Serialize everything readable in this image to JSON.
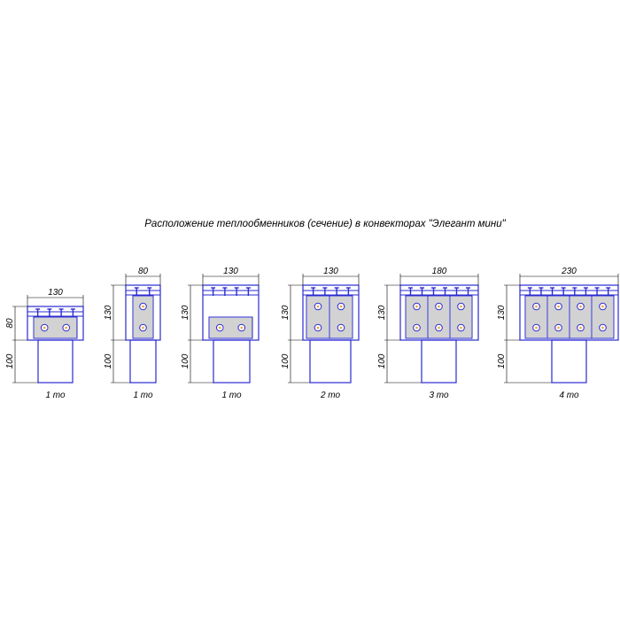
{
  "title": "Расположение теплообменников (сечение) в конвекторах \"Элегант мини\"",
  "colors": {
    "outline": "#2a2ad0",
    "dimension": "#000000",
    "exchanger_fill": "#e4e4e4",
    "pipe_center": "#f0a040"
  },
  "units": [
    {
      "width_label": "130",
      "height_label": "80",
      "base_label": "100",
      "caption": "1 то",
      "exchangers": 1,
      "orientation": "horizontal"
    },
    {
      "width_label": "80",
      "height_label": "130",
      "base_label": "100",
      "caption": "1 то",
      "exchangers": 1,
      "orientation": "vertical"
    },
    {
      "width_label": "130",
      "height_label": "130",
      "base_label": "100",
      "caption": "1 то",
      "exchangers": 1,
      "orientation": "horizontal"
    },
    {
      "width_label": "130",
      "height_label": "130",
      "base_label": "100",
      "caption": "2 то",
      "exchangers": 2,
      "orientation": "vertical"
    },
    {
      "width_label": "180",
      "height_label": "130",
      "base_label": "100",
      "caption": "3 то",
      "exchangers": 3,
      "orientation": "vertical"
    },
    {
      "width_label": "230",
      "height_label": "130",
      "base_label": "100",
      "caption": "4 то",
      "exchangers": 4,
      "orientation": "vertical"
    }
  ]
}
